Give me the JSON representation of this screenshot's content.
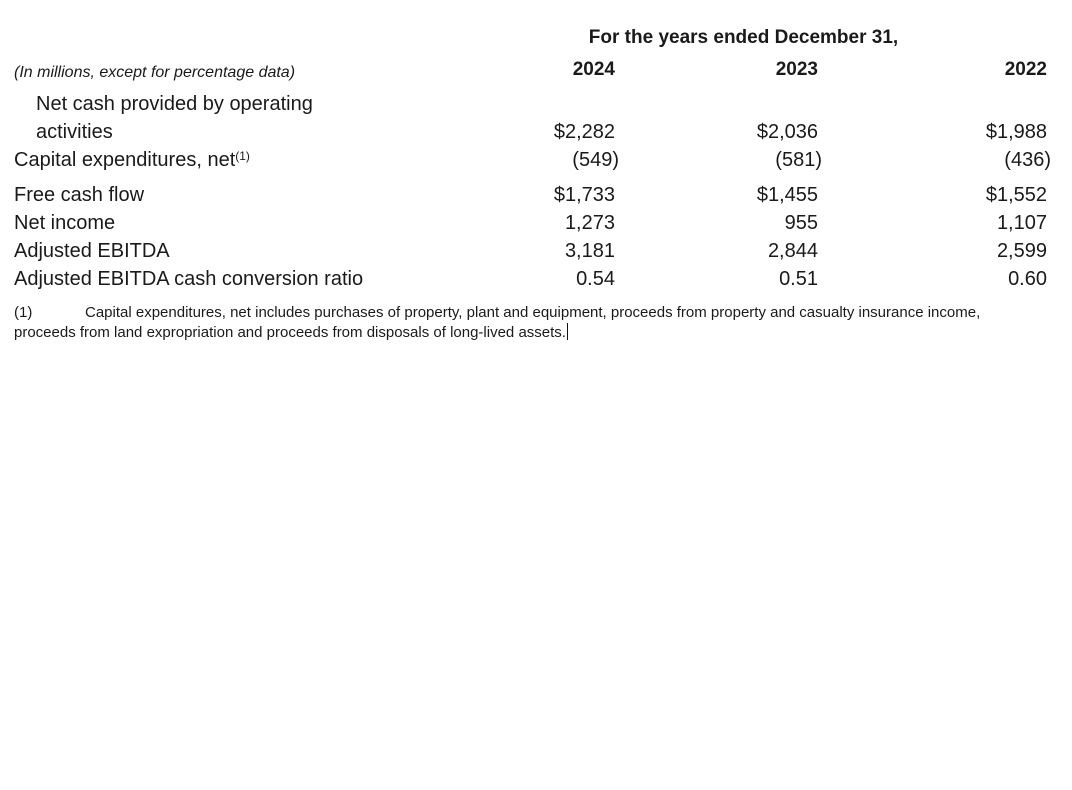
{
  "page": {
    "background": "#ffffff",
    "text_color": "#1a1a1a"
  },
  "table": {
    "title": "For the years ended December 31,",
    "unit_note": "(In millions, except for percentage data)",
    "columns": [
      "2024",
      "2023",
      "2022"
    ],
    "rows": [
      {
        "label": "Net cash provided by operating activities",
        "values": [
          "$2,282",
          "$2,036",
          "$1,988"
        ]
      },
      {
        "label": "Capital expenditures, net",
        "superscript": "(1)",
        "values": [
          "(549)",
          "(581)",
          "(436)"
        ]
      },
      {
        "label": "Free cash flow",
        "values": [
          "$1,733",
          "$1,455",
          "$1,552"
        ]
      },
      {
        "label": "Net income",
        "values": [
          "1,273",
          "955",
          "1,107"
        ]
      },
      {
        "label": "Adjusted EBITDA",
        "values": [
          "3,181",
          "2,844",
          "2,599"
        ]
      },
      {
        "label": "Adjusted EBITDA cash conversion ratio",
        "values": [
          "0.54",
          "0.51",
          "0.60"
        ]
      }
    ],
    "footnote": {
      "marker": "(1)",
      "text": "Capital expenditures, net includes purchases of property, plant and equipment, proceeds from property and casualty insurance income, proceeds from land expropriation and proceeds from disposals of long-lived assets."
    }
  }
}
